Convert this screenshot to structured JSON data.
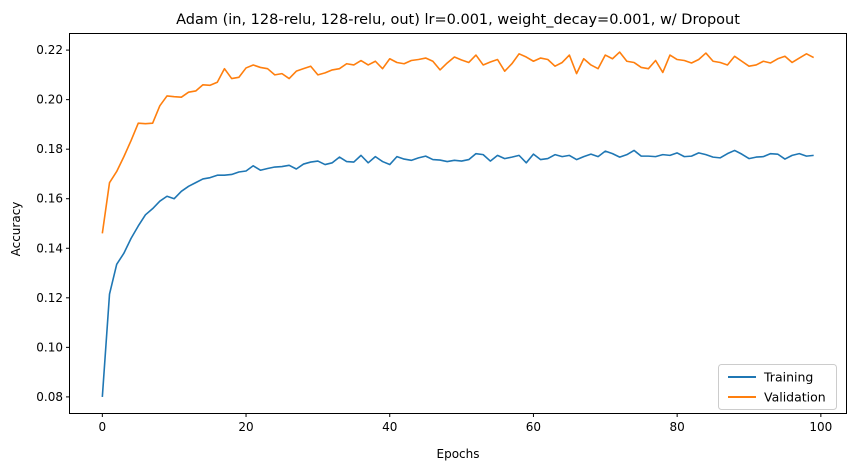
{
  "chart_data": {
    "type": "line",
    "title": "Adam (in, 128-relu, 128-relu, out) lr=0.001, weight_decay=0.001, w/ Dropout",
    "xlabel": "Epochs",
    "ylabel": "Accuracy",
    "xlim": [
      -4.5,
      103.5
    ],
    "ylim": [
      0.0735,
      0.2265
    ],
    "xticks": [
      0,
      20,
      40,
      60,
      80,
      100
    ],
    "yticks": [
      0.08,
      0.1,
      0.12,
      0.14,
      0.16,
      0.18,
      0.2,
      0.22
    ],
    "ytick_labels": [
      "0.08",
      "0.10",
      "0.12",
      "0.14",
      "0.16",
      "0.18",
      "0.20",
      "0.22"
    ],
    "xtick_labels": [
      "0",
      "20",
      "40",
      "60",
      "80",
      "100"
    ],
    "grid": false,
    "legend": "lower-right",
    "series": [
      {
        "name": "Training",
        "color": "#1f77b4",
        "values": [
          0.08,
          0.1215,
          0.1335,
          0.138,
          0.144,
          0.149,
          0.1535,
          0.156,
          0.159,
          0.161,
          0.16,
          0.163,
          0.165,
          0.1665,
          0.168,
          0.1685,
          0.1695,
          0.1695,
          0.1698,
          0.1708,
          0.1712,
          0.1733,
          0.1715,
          0.1722,
          0.1728,
          0.173,
          0.1735,
          0.172,
          0.174,
          0.1748,
          0.1752,
          0.1738,
          0.1745,
          0.1768,
          0.175,
          0.1748,
          0.1775,
          0.1745,
          0.177,
          0.175,
          0.1738,
          0.177,
          0.176,
          0.1755,
          0.1765,
          0.1772,
          0.1758,
          0.1756,
          0.175,
          0.1755,
          0.1752,
          0.1758,
          0.1782,
          0.1778,
          0.1752,
          0.1775,
          0.1762,
          0.1768,
          0.1775,
          0.1745,
          0.178,
          0.1758,
          0.1762,
          0.1778,
          0.177,
          0.1775,
          0.1758,
          0.177,
          0.178,
          0.177,
          0.1792,
          0.1782,
          0.1768,
          0.1778,
          0.1795,
          0.1772,
          0.1772,
          0.177,
          0.1778,
          0.1775,
          0.1785,
          0.177,
          0.1772,
          0.1785,
          0.1778,
          0.1768,
          0.1765,
          0.1782,
          0.1795,
          0.178,
          0.1762,
          0.1768,
          0.177,
          0.1782,
          0.178,
          0.176,
          0.1775,
          0.1782,
          0.1772,
          0.1775
        ]
      },
      {
        "name": "Validation",
        "color": "#ff7f0e",
        "values": [
          0.146,
          0.1665,
          0.171,
          0.177,
          0.1835,
          0.1905,
          0.1903,
          0.1905,
          0.1975,
          0.2015,
          0.2012,
          0.201,
          0.203,
          0.2035,
          0.206,
          0.2058,
          0.207,
          0.2125,
          0.2085,
          0.209,
          0.2128,
          0.214,
          0.213,
          0.2125,
          0.21,
          0.2105,
          0.2085,
          0.2115,
          0.2125,
          0.2135,
          0.21,
          0.2108,
          0.212,
          0.2125,
          0.2145,
          0.214,
          0.2158,
          0.214,
          0.2155,
          0.2125,
          0.2165,
          0.215,
          0.2145,
          0.2158,
          0.2162,
          0.2168,
          0.2155,
          0.212,
          0.2148,
          0.2172,
          0.216,
          0.215,
          0.218,
          0.214,
          0.2152,
          0.2162,
          0.2115,
          0.2145,
          0.2185,
          0.2172,
          0.2155,
          0.2168,
          0.2162,
          0.2135,
          0.215,
          0.218,
          0.2105,
          0.2165,
          0.214,
          0.2125,
          0.218,
          0.2165,
          0.2192,
          0.2155,
          0.215,
          0.213,
          0.2125,
          0.2158,
          0.211,
          0.218,
          0.2162,
          0.2158,
          0.2148,
          0.2162,
          0.2188,
          0.2155,
          0.215,
          0.214,
          0.2175,
          0.2155,
          0.2135,
          0.214,
          0.2155,
          0.2148,
          0.2165,
          0.2175,
          0.215,
          0.2168,
          0.2185,
          0.217
        ]
      }
    ]
  }
}
